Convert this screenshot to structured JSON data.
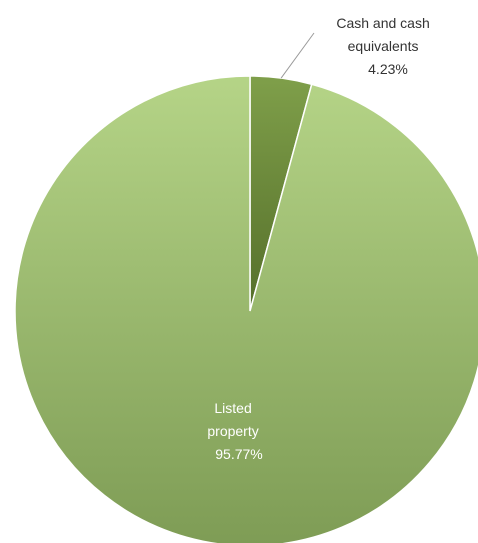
{
  "chart_data": {
    "type": "pie",
    "title": "",
    "slices": [
      {
        "label_lines": [
          "Cash and cash",
          "equivalents"
        ],
        "value_text": "4.23%",
        "value": 4.23,
        "color_light": "#7f9f4a",
        "color_dark": "#556f2a",
        "label_position": "outside-top-right"
      },
      {
        "label_lines": [
          "Listed",
          "property"
        ],
        "value_text": "95.77%",
        "value": 95.77,
        "color_light": "#b5d487",
        "color_dark": "#7e9c55",
        "label_position": "inside"
      }
    ],
    "start": "12 o'clock",
    "direction": "clockwise",
    "legend": "none"
  }
}
